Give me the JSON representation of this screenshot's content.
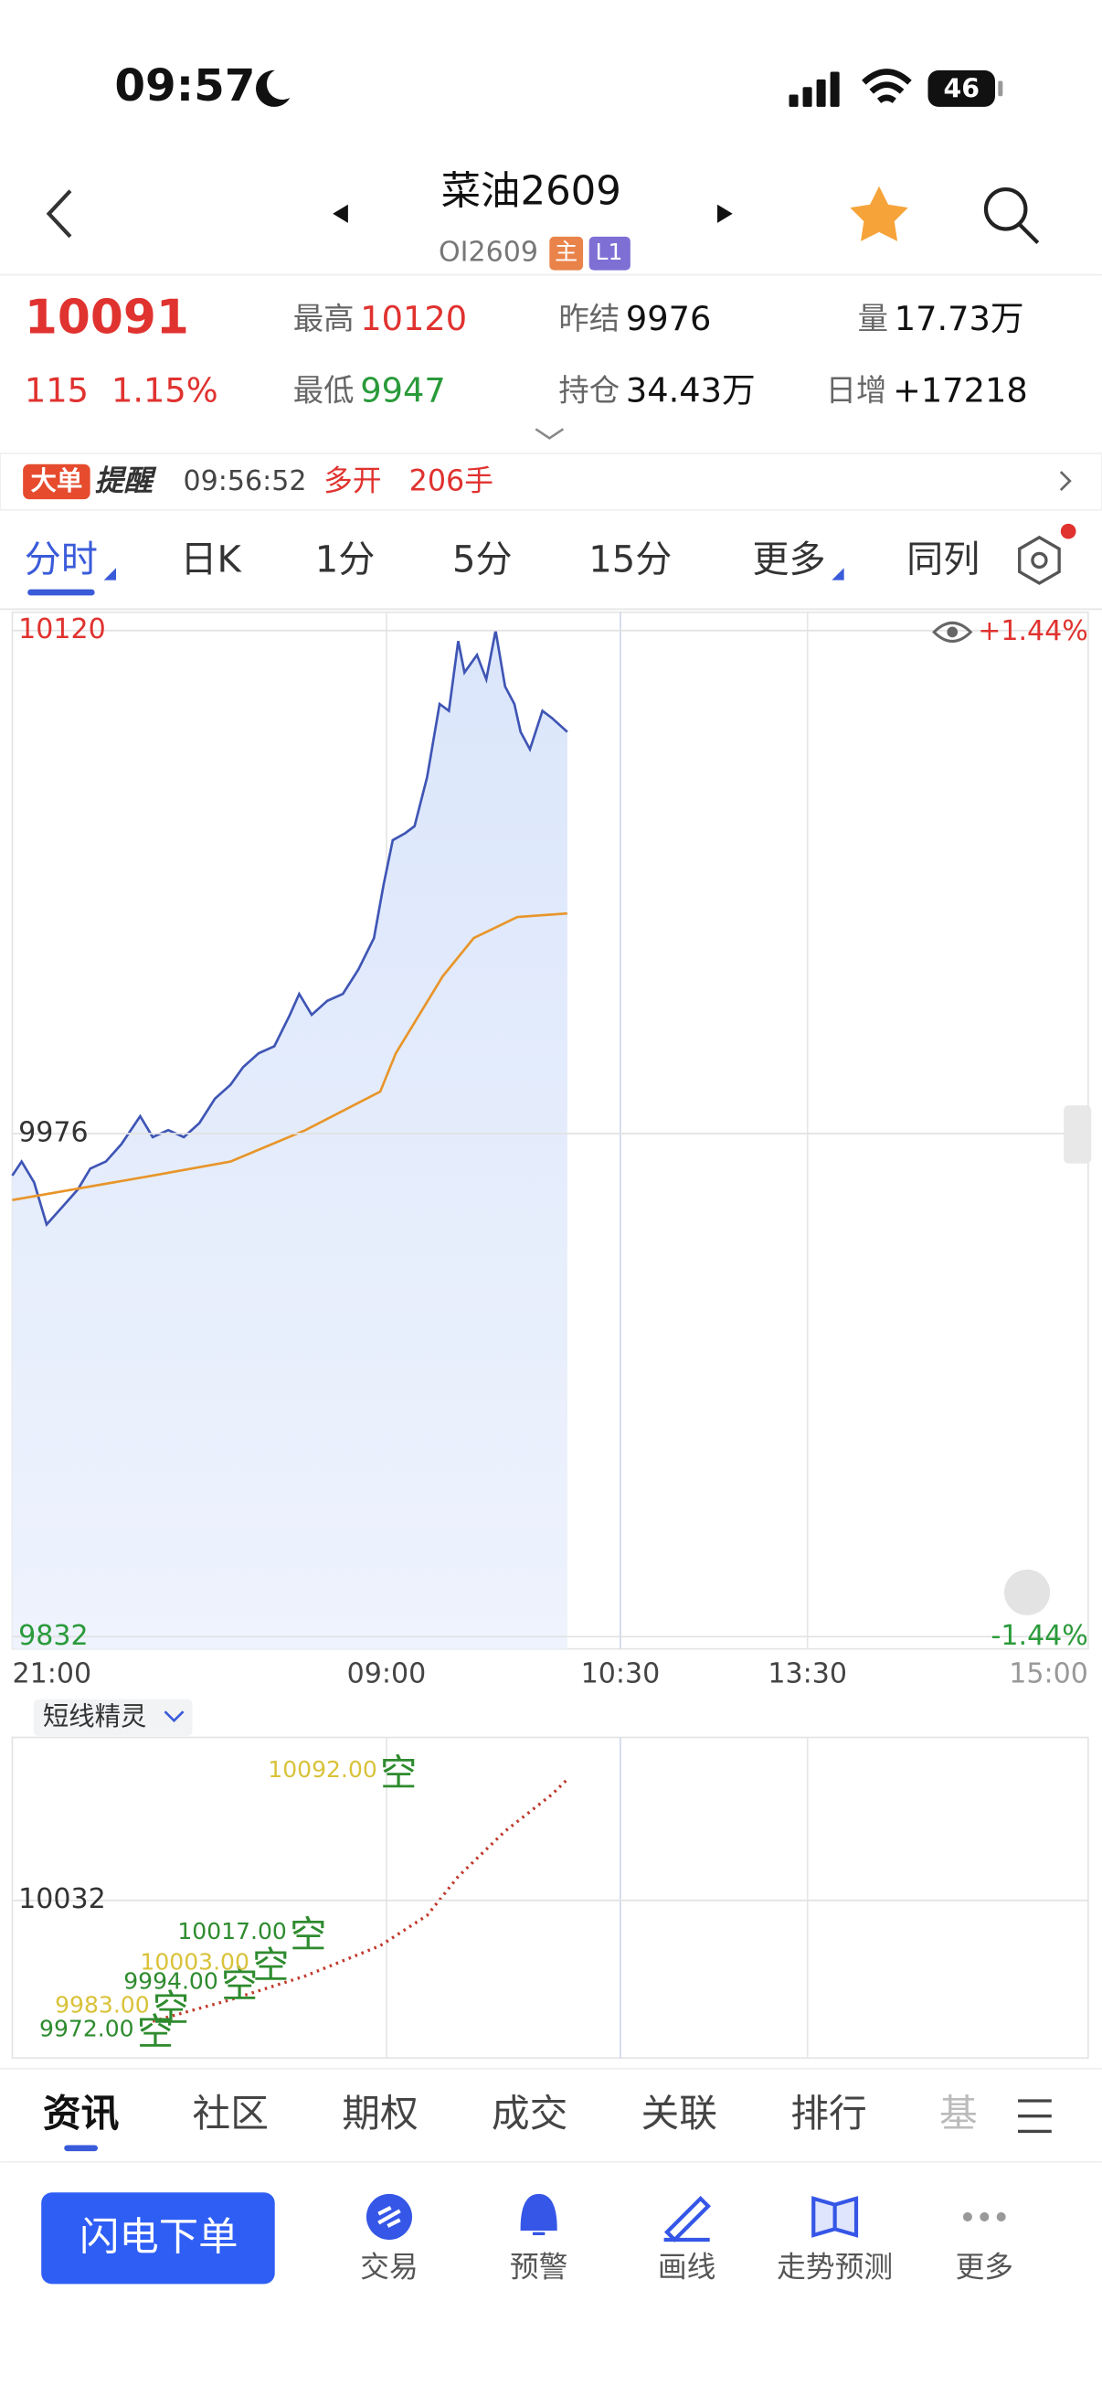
{
  "status_bar": {
    "time": "09:57",
    "battery": "46"
  },
  "header": {
    "title": "菜油2609",
    "code": "OI2609",
    "tags": [
      "主",
      "L1"
    ]
  },
  "quote": {
    "price": "10091",
    "change": "115",
    "change_pct": "1.15%",
    "fields": [
      {
        "label": "最高",
        "value": "10120",
        "color": "#e0322f"
      },
      {
        "label": "最低",
        "value": "9947",
        "color": "#2a9a3a"
      },
      {
        "label": "昨结",
        "value": "9976",
        "color": "#111111"
      },
      {
        "label": "持仓",
        "value": "34.43万",
        "color": "#111111"
      },
      {
        "label": "量",
        "value": "17.73万",
        "color": "#111111"
      },
      {
        "label": "日增",
        "value": "+17218",
        "color": "#111111"
      }
    ]
  },
  "alert": {
    "badge": "大单",
    "title": "提醒",
    "time": "09:56:52",
    "action": "多开",
    "quantity": "206手"
  },
  "tabs": [
    "分时",
    "日K",
    "1分",
    "5分",
    "15分",
    "更多",
    "同列"
  ],
  "chart_data": [
    {
      "type": "line",
      "xlim": [
        0,
        345
      ],
      "xticks": [
        {
          "value": 0,
          "label": "21:00"
        },
        {
          "value": 120,
          "label": "09:00"
        },
        {
          "value": 195,
          "label": "10:30"
        },
        {
          "value": 255,
          "label": "13:30"
        },
        {
          "value": 345,
          "label": "15:00"
        }
      ],
      "ylim": [
        9832,
        10120
      ],
      "yticks": [
        9832,
        9976,
        10120
      ],
      "right_labels": [
        "+1.44%",
        "-1.44%"
      ],
      "grid": true,
      "series": [
        {
          "color": "#3f55b5",
          "x": [
            0,
            3,
            7,
            11,
            16,
            21,
            25,
            30,
            35,
            41,
            45,
            50,
            55,
            60,
            65,
            70,
            74,
            79,
            84,
            89,
            92,
            96,
            101,
            106,
            111,
            116,
            119,
            122,
            126,
            129,
            133,
            137,
            140,
            143,
            145,
            149,
            152,
            155,
            158,
            161,
            163,
            166,
            170,
            173,
            178
          ],
          "values": [
            9964,
            9968,
            9962,
            9950,
            9955,
            9960,
            9966,
            9968,
            9973,
            9981,
            9975,
            9977,
            9975,
            9979,
            9986,
            9990,
            9995,
            9999,
            10001,
            10010,
            10016,
            10010,
            10014,
            10016,
            10023,
            10032,
            10047,
            10060,
            10062,
            10064,
            10078,
            10099,
            10097,
            10117,
            10108,
            10113,
            10106,
            10120,
            10104,
            10099,
            10091,
            10086,
            10097,
            10095,
            10091
          ]
        },
        {
          "color": "#e8952a",
          "x": [
            0,
            45,
            70,
            94,
            118,
            123,
            138,
            148,
            162,
            178
          ],
          "values": [
            9957,
            9964,
            9968,
            9977,
            9988,
            9999,
            10021,
            10032,
            10038,
            10039
          ]
        }
      ]
    },
    {
      "type": "line",
      "label": "短线精灵",
      "xlim": [
        0,
        345
      ],
      "xticks": [
        {
          "value": 0,
          "label": null
        },
        {
          "value": 120,
          "label": null
        },
        {
          "value": 195,
          "label": null
        },
        {
          "value": 255,
          "label": null
        },
        {
          "value": 345,
          "label": null
        }
      ],
      "ylim": [
        9959,
        10106
      ],
      "yticks": [
        10032
      ],
      "series": [
        {
          "color": "#c0392b",
          "x": [
            45,
            70,
            94,
            118,
            133,
            143,
            158,
            173,
            178
          ],
          "values": [
            9976,
            9986,
            9997,
            10011,
            10025,
            10043,
            10064,
            10081,
            10088
          ]
        }
      ],
      "signals": {
        "x": [
          40,
          45,
          67,
          77,
          89,
          118
        ],
        "values": [
          9972,
          9983,
          9994,
          10003,
          10017,
          10092
        ],
        "value_labels": [
          "9972.00",
          "9983.00",
          "9994.00",
          "10003.00",
          "10017.00",
          "10092.00"
        ],
        "kinds": [
          "空",
          "空",
          "空",
          "空",
          "空",
          "空"
        ]
      }
    }
  ],
  "bottom_tabs": [
    "资讯",
    "社区",
    "期权",
    "成交",
    "关联",
    "排行",
    "基"
  ],
  "toolbar": {
    "button": "闪电下单",
    "items": [
      "交易",
      "预警",
      "画线",
      "走势预测",
      "更多"
    ]
  }
}
